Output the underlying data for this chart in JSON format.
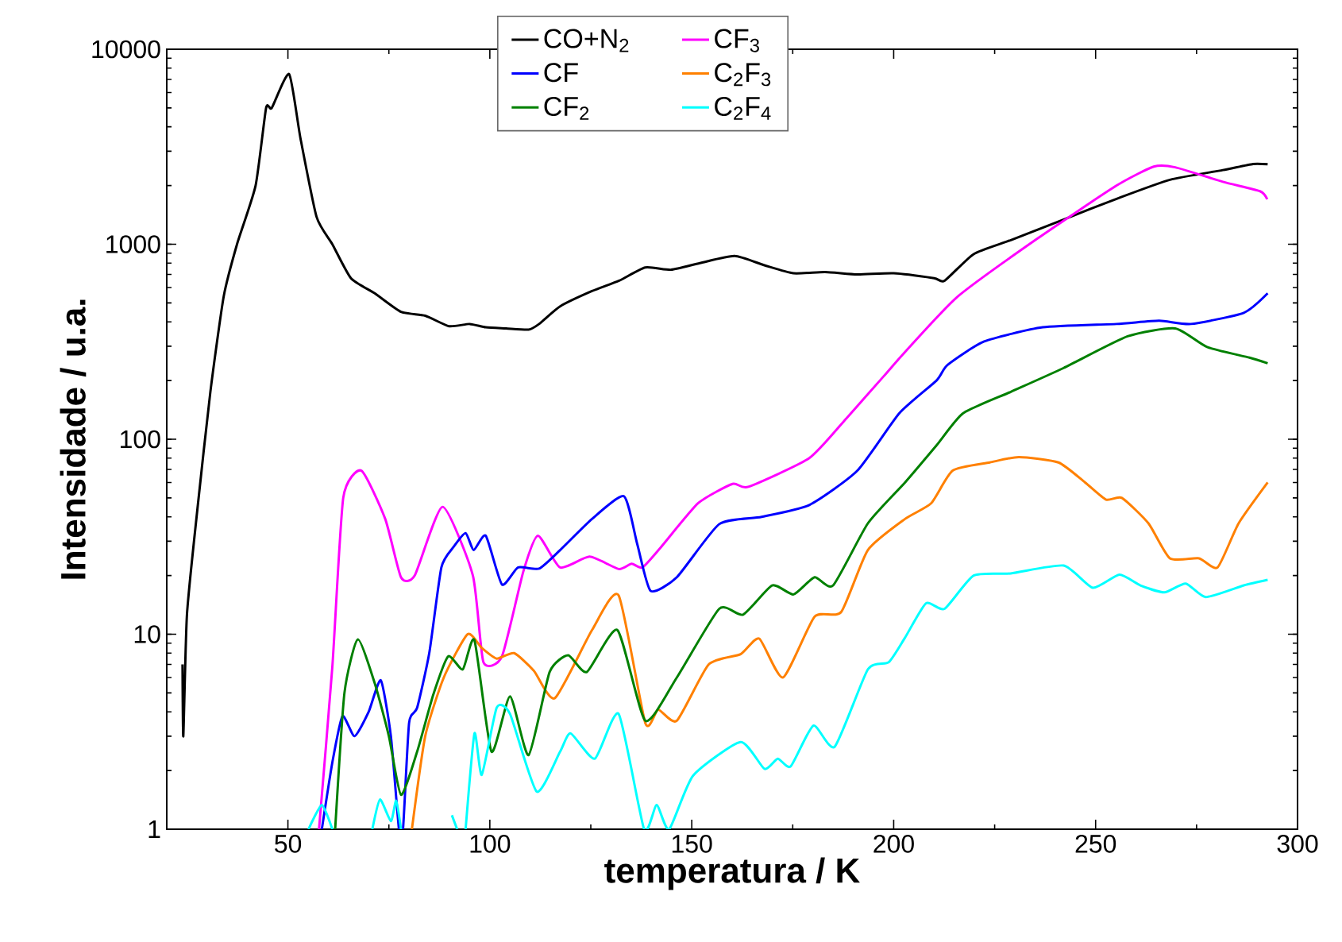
{
  "chart_data": {
    "type": "line",
    "xlabel": "temperatura / K",
    "ylabel": "Intensidade / u.a.",
    "log": "y",
    "legend": "top",
    "marker": "none",
    "line_style": "solid",
    "grid": false,
    "xlim": [
      20,
      300
    ],
    "xticks": [
      50,
      100,
      150,
      200,
      250,
      300
    ],
    "ylim": [
      1,
      10000
    ],
    "yticks": [
      1,
      10,
      100,
      1000,
      10000
    ],
    "series": [
      {
        "name": "CO+N$_{2}$",
        "color": "#000000",
        "x": [
          23.9,
          24.1,
          25,
          27.6,
          30.8,
          34.1,
          37.4,
          42,
          44.6,
          46,
          50.3,
          53.1,
          57.1,
          61,
          65.6,
          71.5,
          78,
          84,
          89.9,
          95,
          99,
          104,
          109.6,
          112.2,
          117.4,
          125.3,
          132,
          138.5,
          144.9,
          152,
          160.6,
          168,
          175.2,
          183,
          191,
          200,
          210,
          212.6,
          219.8,
          229,
          242.1,
          255.2,
          268.4,
          281.5,
          289,
          292.6
        ],
        "values": [
          7,
          3,
          12.6,
          44,
          175,
          540,
          1000,
          2000,
          5000,
          5000,
          7450,
          3500,
          1380,
          1000,
          670,
          560,
          450,
          430,
          380,
          390,
          375,
          370,
          365,
          390,
          480,
          575,
          650,
          760,
          740,
          800,
          870,
          780,
          710,
          720,
          700,
          710,
          670,
          650,
          890,
          1050,
          1340,
          1710,
          2140,
          2400,
          2580,
          2570
        ]
      },
      {
        "name": "CF",
        "color": "#0000ff",
        "x": [
          58.4,
          61,
          63.5,
          66.5,
          70,
          73,
          75.5,
          77.5,
          78.5,
          80,
          82,
          85,
          88,
          91,
          94,
          96,
          99,
          103,
          107,
          112.2,
          117.4,
          125.3,
          133.2,
          136.5,
          139.8,
          146.3,
          156.8,
          167.3,
          179.1,
          191,
          201.4,
          210.6,
          213.3,
          222.4,
          236.9,
          255.2,
          265.7,
          273.6,
          286.7,
          292.6
        ],
        "values": [
          1,
          2.2,
          3.8,
          3,
          4,
          5.8,
          3,
          1,
          1,
          3.5,
          4.2,
          8,
          22,
          28,
          33,
          27,
          32,
          18,
          22,
          21.7,
          27,
          39,
          51,
          29,
          16.7,
          19.6,
          36.7,
          40,
          46,
          69,
          136,
          200,
          240,
          317,
          375,
          390,
          405,
          390,
          445,
          560
        ]
      },
      {
        "name": "CF$_{2}$",
        "color": "#008000",
        "x": [
          61.7,
          64,
          67.3,
          71.5,
          75,
          78,
          82,
          86,
          89.7,
          93.3,
          96.2,
          100.4,
          105,
          109.6,
          114.8,
          119.4,
          124,
          131.6,
          138.5,
          146.3,
          156.8,
          162.7,
          169.9,
          175.2,
          180.4,
          185,
          193.6,
          202.8,
          210.6,
          217.2,
          229,
          242.1,
          257.9,
          269.7,
          277.6,
          288.1,
          292.6
        ],
        "values": [
          1,
          5,
          9.4,
          5.6,
          3,
          1.5,
          2.5,
          4.9,
          7.7,
          6.6,
          9.3,
          2.5,
          4.8,
          2.4,
          6.4,
          7.8,
          6.4,
          10.5,
          3.6,
          6,
          13.5,
          12.6,
          17.8,
          16,
          19.6,
          17.8,
          37,
          60,
          93,
          136,
          175,
          232,
          337,
          370,
          297,
          262,
          245
        ]
      },
      {
        "name": "CF$_{3}$",
        "color": "#ff00ff",
        "x": [
          57.7,
          61,
          63.7,
          68.2,
          74.1,
          78,
          81.4,
          88.3,
          95.8,
          98.4,
          103,
          108.3,
          111.9,
          117.4,
          124.7,
          131.9,
          135.1,
          137.8,
          142.4,
          151.6,
          160.1,
          164,
          179.1,
          188.3,
          197.5,
          202.8,
          215.9,
          235.6,
          255.2,
          264.4,
          269.7,
          281.5,
          290.7,
          292.5
        ],
        "values": [
          1,
          6.8,
          50,
          69,
          39,
          19.6,
          20,
          45,
          20,
          7.2,
          7.7,
          21,
          32,
          22,
          25,
          21.6,
          23,
          22,
          28,
          47,
          59,
          57,
          80,
          128,
          210,
          280,
          540,
          1070,
          2000,
          2500,
          2480,
          2090,
          1870,
          1700
        ]
      },
      {
        "name": "C$_{2}$F$_{3}$",
        "color": "#ff8000",
        "x": [
          80.7,
          84,
          88.6,
          94.5,
          98,
          101.7,
          106,
          110.9,
          116.1,
          125.3,
          131.9,
          138.5,
          141.7,
          146.3,
          154.2,
          162.1,
          166.7,
          172.6,
          180.4,
          187,
          193.6,
          202.8,
          209.3,
          214.6,
          223.8,
          231,
          240.8,
          247.4,
          252.6,
          256.5,
          263.1,
          268.4,
          275.6,
          280.2,
          285.4,
          292.6
        ],
        "values": [
          1,
          3,
          6,
          10,
          8.5,
          7.5,
          8,
          6.5,
          4.7,
          10.5,
          15.8,
          3.5,
          4.1,
          3.6,
          7,
          7.9,
          9.5,
          6,
          12.3,
          13,
          27,
          39,
          47,
          69,
          76,
          81,
          76,
          60,
          49,
          50,
          37,
          24.5,
          24.5,
          22,
          37,
          60
        ]
      },
      {
        "name": "C$_{2}$F$_{4}$",
        "color": "#00ffff",
        "x": [
          55.1,
          58.4,
          61,
          null,
          70.9,
          72.8,
          75.5,
          76.8,
          78,
          null,
          90.6,
          91.9,
          null,
          94,
          96.2,
          98,
          101.7,
          105,
          111.6,
          117.4,
          120,
          126,
          131.9,
          138.2,
          141.3,
          144.4,
          150.3,
          162.1,
          168,
          171.3,
          174.5,
          180.1,
          185.4,
          193.6,
          198.8,
          202.8,
          208,
          212.6,
          219.8,
          229,
          242.1,
          249.3,
          255.9,
          261.1,
          267,
          272.3,
          277.3,
          286.7,
          292.6
        ],
        "values": [
          1,
          1.33,
          1,
          null,
          1,
          1.42,
          1.1,
          1.4,
          1,
          null,
          1.18,
          1,
          null,
          1,
          3.1,
          1.9,
          4.2,
          3.9,
          1.56,
          2.5,
          3.1,
          2.3,
          3.9,
          1,
          1.33,
          1,
          1.88,
          2.8,
          2.04,
          2.3,
          2.1,
          3.4,
          2.65,
          6.6,
          7.2,
          9.6,
          14.4,
          13.5,
          20,
          20.5,
          22.5,
          17.3,
          20.2,
          17.8,
          16.4,
          18.2,
          15.5,
          17.8,
          19
        ]
      }
    ]
  }
}
